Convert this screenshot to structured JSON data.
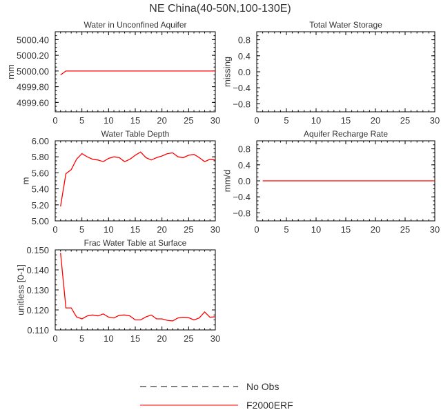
{
  "title": "NE China(40-50N,100-130E)",
  "legend": [
    {
      "label": "No Obs",
      "style": "dashed",
      "color": "#000000"
    },
    {
      "label": "F2000ERF",
      "style": "solid",
      "color": "#ff0000"
    }
  ],
  "colors": {
    "series": "#ff0000",
    "axis": "#000000",
    "text": "#333333"
  },
  "chart_data": [
    {
      "type": "line",
      "title": "Water in Unconfined Aquifer",
      "ylabel": "mm",
      "xlabel": "",
      "xlim": [
        0,
        30
      ],
      "ylim": [
        4999.48,
        5000.5
      ],
      "xticks": [
        0,
        5,
        10,
        15,
        20,
        25,
        30
      ],
      "yticks": [
        4999.6,
        4999.8,
        5000.0,
        5000.2,
        5000.4
      ],
      "ytick_labels": [
        "4999.60",
        "4999.80",
        "5000.00",
        "5000.20",
        "5000.40"
      ],
      "series": [
        {
          "name": "F2000ERF",
          "x": [
            1,
            2,
            3,
            4,
            5,
            6,
            7,
            8,
            9,
            10,
            11,
            12,
            13,
            14,
            15,
            16,
            17,
            18,
            19,
            20,
            21,
            22,
            23,
            24,
            25,
            26,
            27,
            28,
            29,
            30
          ],
          "values": [
            4999.95,
            5000,
            5000,
            5000,
            5000,
            5000,
            5000,
            5000,
            5000,
            5000,
            5000,
            5000,
            5000,
            5000,
            5000,
            5000,
            5000,
            5000,
            5000,
            5000,
            5000,
            5000,
            5000,
            5000,
            5000,
            5000,
            5000,
            5000,
            5000,
            5000
          ]
        }
      ]
    },
    {
      "type": "line",
      "title": "Total Water Storage",
      "ylabel": "missing",
      "xlabel": "",
      "xlim": [
        0,
        30
      ],
      "ylim": [
        -1,
        1
      ],
      "xticks": [
        0,
        5,
        10,
        15,
        20,
        25,
        30
      ],
      "yticks": [
        -0.8,
        -0.4,
        0.0,
        0.4,
        0.8
      ],
      "ytick_labels": [
        "−0.8",
        "−0.4",
        "0.0",
        "0.4",
        "0.8"
      ],
      "series": []
    },
    {
      "type": "line",
      "title": "Water Table Depth",
      "ylabel": "m",
      "xlabel": "",
      "xlim": [
        0,
        30
      ],
      "ylim": [
        5.0,
        6.0
      ],
      "xticks": [
        0,
        5,
        10,
        15,
        20,
        25,
        30
      ],
      "yticks": [
        5.0,
        5.2,
        5.4,
        5.6,
        5.8,
        6.0
      ],
      "ytick_labels": [
        "5.00",
        "5.20",
        "5.40",
        "5.60",
        "5.80",
        "6.00"
      ],
      "series": [
        {
          "name": "F2000ERF",
          "x": [
            1,
            2,
            3,
            4,
            5,
            6,
            7,
            8,
            9,
            10,
            11,
            12,
            13,
            14,
            15,
            16,
            17,
            18,
            19,
            20,
            21,
            22,
            23,
            24,
            25,
            26,
            27,
            28,
            29,
            30
          ],
          "values": [
            5.18,
            5.59,
            5.64,
            5.77,
            5.84,
            5.8,
            5.77,
            5.76,
            5.74,
            5.78,
            5.8,
            5.79,
            5.74,
            5.77,
            5.82,
            5.86,
            5.79,
            5.76,
            5.79,
            5.81,
            5.84,
            5.85,
            5.8,
            5.79,
            5.82,
            5.83,
            5.79,
            5.74,
            5.77,
            5.76
          ]
        }
      ]
    },
    {
      "type": "line",
      "title": "Aquifer Recharge Rate",
      "ylabel": "mm/d",
      "xlabel": "",
      "xlim": [
        0,
        30
      ],
      "ylim": [
        -1,
        1
      ],
      "xticks": [
        0,
        5,
        10,
        15,
        20,
        25,
        30
      ],
      "yticks": [
        -0.8,
        -0.4,
        0.0,
        0.4,
        0.8
      ],
      "ytick_labels": [
        "−0.8",
        "−0.4",
        "0.0",
        "0.4",
        "0.8"
      ],
      "series": [
        {
          "name": "F2000ERF",
          "x": [
            1,
            2,
            3,
            4,
            5,
            6,
            7,
            8,
            9,
            10,
            11,
            12,
            13,
            14,
            15,
            16,
            17,
            18,
            19,
            20,
            21,
            22,
            23,
            24,
            25,
            26,
            27,
            28,
            29,
            30
          ],
          "values": [
            0,
            0,
            0,
            0,
            0,
            0,
            0,
            0,
            0,
            0,
            0,
            0,
            0,
            0,
            0,
            0,
            0,
            0,
            0,
            0,
            0,
            0,
            0,
            0,
            0,
            0,
            0,
            0,
            0,
            0
          ]
        }
      ]
    },
    {
      "type": "line",
      "title": "Frac Water Table at Surface",
      "ylabel": "unitless [0-1]",
      "xlabel": "",
      "xlim": [
        0,
        30
      ],
      "ylim": [
        0.11,
        0.15
      ],
      "xticks": [
        0,
        5,
        10,
        15,
        20,
        25,
        30
      ],
      "yticks": [
        0.11,
        0.12,
        0.13,
        0.14,
        0.15
      ],
      "ytick_labels": [
        "0.110",
        "0.120",
        "0.130",
        "0.140",
        "0.150"
      ],
      "series": [
        {
          "name": "F2000ERF",
          "x": [
            1,
            2,
            3,
            4,
            5,
            6,
            7,
            8,
            9,
            10,
            11,
            12,
            13,
            14,
            15,
            16,
            17,
            18,
            19,
            20,
            21,
            22,
            23,
            24,
            25,
            26,
            27,
            28,
            29,
            30
          ],
          "values": [
            0.1485,
            0.121,
            0.121,
            0.1165,
            0.1155,
            0.117,
            0.1175,
            0.117,
            0.118,
            0.1164,
            0.116,
            0.1173,
            0.1175,
            0.117,
            0.115,
            0.115,
            0.1165,
            0.1175,
            0.1155,
            0.1155,
            0.1148,
            0.1145,
            0.116,
            0.1163,
            0.1161,
            0.115,
            0.116,
            0.119,
            0.1163,
            0.1166
          ]
        }
      ]
    }
  ]
}
